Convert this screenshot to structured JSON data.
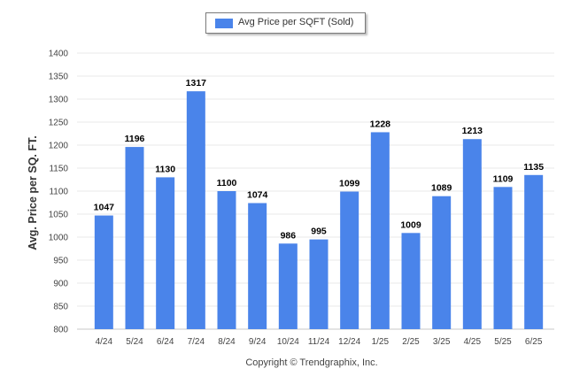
{
  "chart_data": {
    "type": "bar",
    "categories": [
      "4/24",
      "5/24",
      "6/24",
      "7/24",
      "8/24",
      "9/24",
      "10/24",
      "11/24",
      "12/24",
      "1/25",
      "2/25",
      "3/25",
      "4/25",
      "5/25",
      "6/25"
    ],
    "series": [
      {
        "name": "Avg Price per SQFT (Sold)",
        "values": [
          1047,
          1196,
          1130,
          1317,
          1100,
          1074,
          986,
          995,
          1099,
          1228,
          1009,
          1089,
          1213,
          1109,
          1135
        ]
      }
    ],
    "ylabel": "Avg. Price per SQ. FT.",
    "xlabel": "",
    "ylim": [
      800,
      1400
    ],
    "yticks": [
      800,
      850,
      900,
      950,
      1000,
      1050,
      1100,
      1150,
      1200,
      1250,
      1300,
      1350,
      1400
    ],
    "grid": true,
    "legend_position": "top-center",
    "color": "#4a84ea"
  },
  "footer": {
    "copyright": "Copyright © Trendgraphix, Inc."
  }
}
